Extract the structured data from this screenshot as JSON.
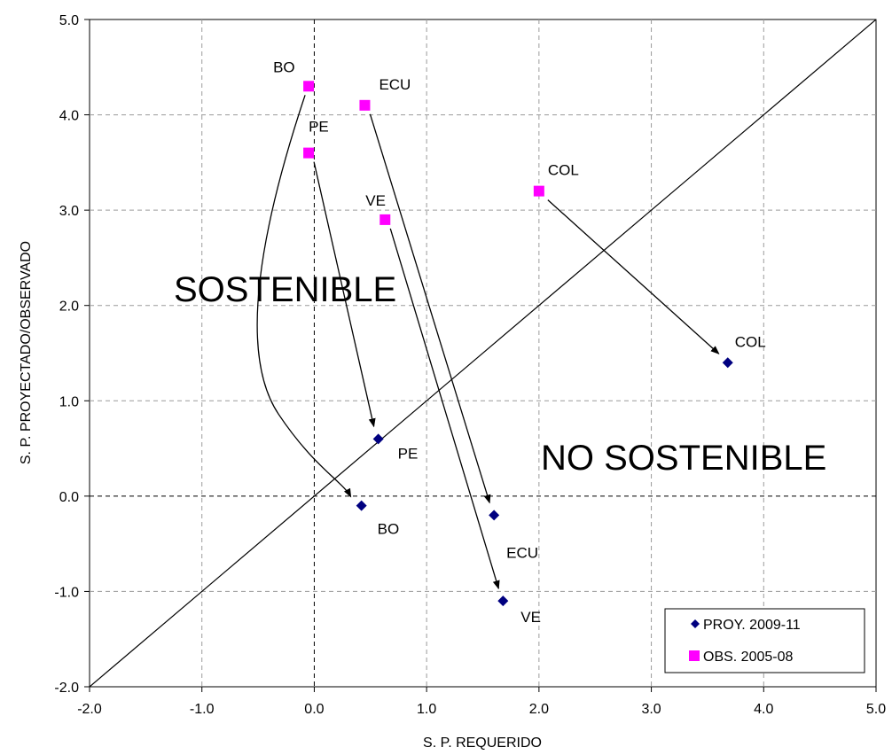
{
  "chart_data": {
    "type": "scatter",
    "xlabel": "S. P. REQUERIDO",
    "ylabel": "S. P. PROYECTADO/OBSERVADO",
    "xlim": [
      -2.0,
      5.0
    ],
    "ylim": [
      -2.0,
      5.0
    ],
    "x_ticks": [
      "-2.0",
      "-1.0",
      "0.0",
      "1.0",
      "2.0",
      "3.0",
      "4.0",
      "5.0"
    ],
    "y_ticks": [
      "-2.0",
      "-1.0",
      "0.0",
      "1.0",
      "2.0",
      "3.0",
      "4.0",
      "5.0"
    ],
    "grid": true,
    "reference_line": "y = x",
    "region_labels": [
      "SOSTENIBLE",
      "NO SOSTENIBLE"
    ],
    "legend_position": "bottom-right",
    "series": [
      {
        "name": "PROY. 2009-11",
        "marker": "diamond",
        "color": "#000080",
        "points": [
          {
            "label": "BO",
            "x": 0.42,
            "y": -0.1
          },
          {
            "label": "PE",
            "x": 0.57,
            "y": 0.6
          },
          {
            "label": "ECU",
            "x": 1.6,
            "y": -0.2
          },
          {
            "label": "VE",
            "x": 1.68,
            "y": -1.1
          },
          {
            "label": "COL",
            "x": 3.68,
            "y": 1.4
          }
        ]
      },
      {
        "name": "OBS. 2005-08",
        "marker": "square",
        "color": "#ff00ff",
        "points": [
          {
            "label": "BO",
            "x": -0.05,
            "y": 4.3
          },
          {
            "label": "ECU",
            "x": 0.45,
            "y": 4.1
          },
          {
            "label": "PE",
            "x": -0.05,
            "y": 3.6
          },
          {
            "label": "VE",
            "x": 0.63,
            "y": 2.9
          },
          {
            "label": "COL",
            "x": 2.0,
            "y": 3.2
          }
        ]
      }
    ],
    "arrows": [
      "BO",
      "PE",
      "ECU",
      "VE",
      "COL"
    ]
  }
}
